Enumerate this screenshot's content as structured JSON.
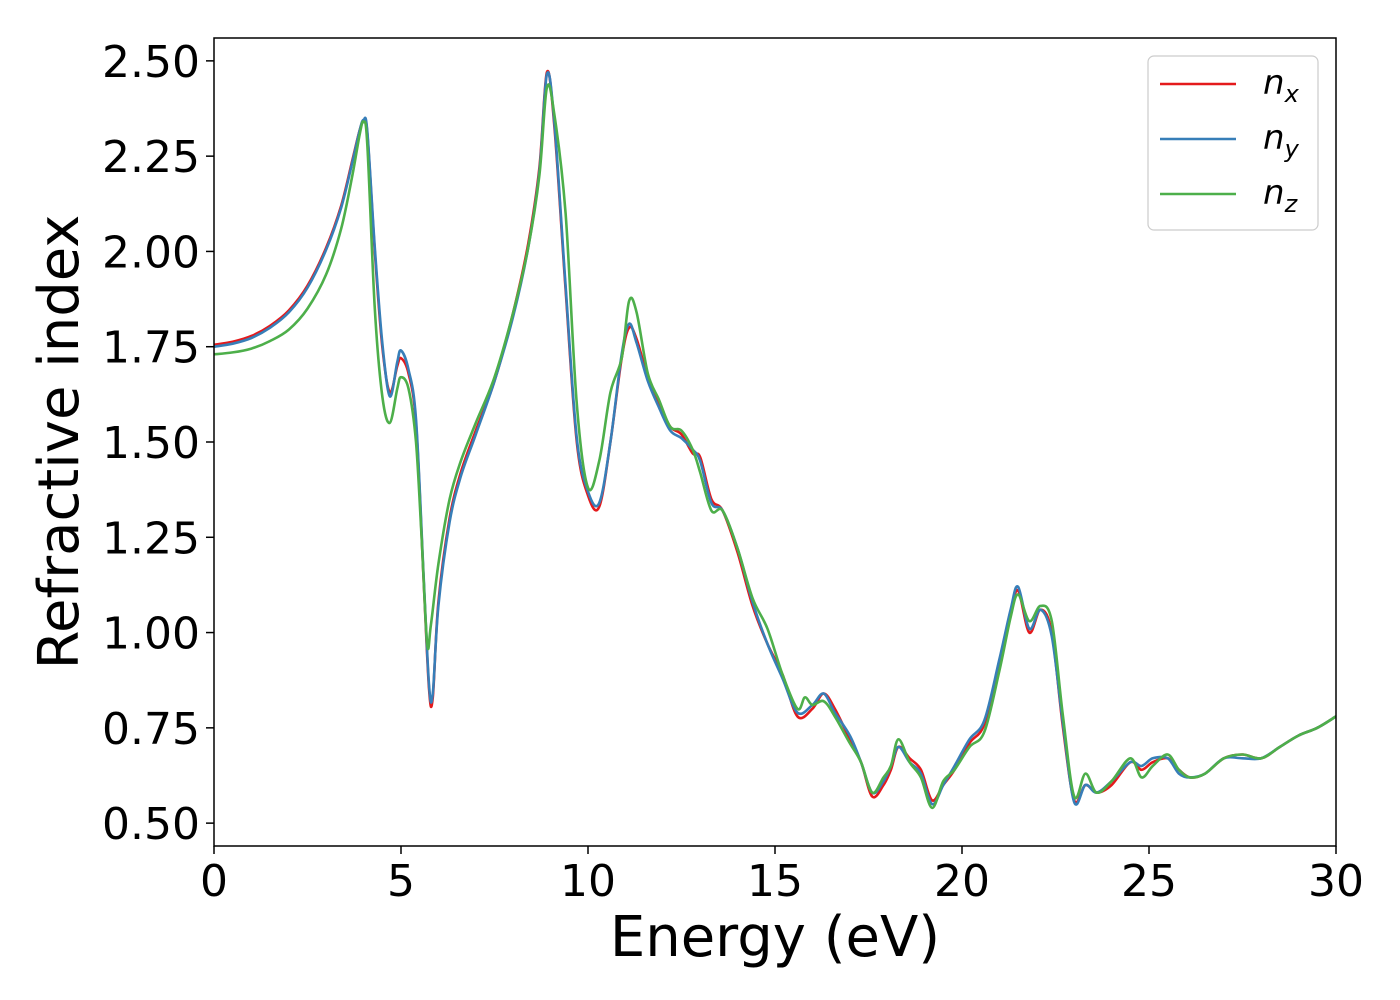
{
  "chart_data": {
    "type": "line",
    "xlabel": "Energy (eV)",
    "ylabel": "Refractive index",
    "xlim": [
      0,
      30
    ],
    "ylim": [
      0.44,
      2.56
    ],
    "xticks": [
      0,
      5,
      10,
      15,
      20,
      25,
      30
    ],
    "xtick_labels": [
      "0",
      "5",
      "10",
      "15",
      "20",
      "25",
      "30"
    ],
    "yticks": [
      0.5,
      0.75,
      1.0,
      1.25,
      1.5,
      1.75,
      2.0,
      2.25,
      2.5
    ],
    "ytick_labels": [
      "0.50",
      "0.75",
      "1.00",
      "1.25",
      "1.50",
      "1.75",
      "2.00",
      "2.25",
      "2.50"
    ],
    "grid": false,
    "legend_position": "top-right",
    "series": [
      {
        "name": "n_x",
        "label_base": "n",
        "label_sub": "x",
        "color": "#e41a1c",
        "x": [
          0,
          0.5,
          1,
          1.5,
          2,
          2.5,
          3,
          3.4,
          3.7,
          3.9,
          4.0,
          4.1,
          4.3,
          4.5,
          4.7,
          4.9,
          5.0,
          5.2,
          5.4,
          5.6,
          5.75,
          5.85,
          6.0,
          6.3,
          6.6,
          7.0,
          7.5,
          8.0,
          8.4,
          8.7,
          8.9,
          9.1,
          9.4,
          9.7,
          10.0,
          10.3,
          10.6,
          10.9,
          11.1,
          11.3,
          11.6,
          11.9,
          12.2,
          12.5,
          12.8,
          13.0,
          13.3,
          13.6,
          14.0,
          14.4,
          14.8,
          15.2,
          15.6,
          16.0,
          16.3,
          16.6,
          17.0,
          17.3,
          17.6,
          17.9,
          18.1,
          18.3,
          18.6,
          18.9,
          19.2,
          19.5,
          19.8,
          20.2,
          20.6,
          21.0,
          21.3,
          21.5,
          21.8,
          22.1,
          22.4,
          22.7,
          23.0,
          23.3,
          23.6,
          24.0,
          24.5,
          24.8,
          25.1,
          25.5,
          25.8,
          26.1,
          26.5,
          27.0,
          27.5,
          28.0,
          28.5,
          29.0,
          29.5,
          30.0
        ],
        "y": [
          1.755,
          1.763,
          1.778,
          1.805,
          1.845,
          1.91,
          2.01,
          2.12,
          2.24,
          2.32,
          2.34,
          2.31,
          2.0,
          1.75,
          1.63,
          1.7,
          1.72,
          1.68,
          1.55,
          1.15,
          0.85,
          0.83,
          1.08,
          1.3,
          1.42,
          1.53,
          1.66,
          1.84,
          2.02,
          2.22,
          2.47,
          2.33,
          1.9,
          1.5,
          1.36,
          1.33,
          1.5,
          1.72,
          1.8,
          1.77,
          1.67,
          1.6,
          1.54,
          1.52,
          1.47,
          1.46,
          1.35,
          1.32,
          1.21,
          1.07,
          0.97,
          0.89,
          0.78,
          0.8,
          0.84,
          0.8,
          0.72,
          0.66,
          0.57,
          0.6,
          0.64,
          0.7,
          0.67,
          0.64,
          0.56,
          0.6,
          0.64,
          0.71,
          0.76,
          0.92,
          1.05,
          1.11,
          1.0,
          1.06,
          1.0,
          0.75,
          0.56,
          0.6,
          0.58,
          0.6,
          0.66,
          0.64,
          0.66,
          0.67,
          0.64,
          0.62,
          0.63,
          0.67,
          0.68,
          0.67,
          0.7,
          0.73,
          0.75,
          0.78
        ]
      },
      {
        "name": "n_y",
        "label_base": "n",
        "label_sub": "y",
        "color": "#377eb8",
        "x": [
          0,
          0.5,
          1,
          1.5,
          2,
          2.5,
          3,
          3.4,
          3.7,
          3.9,
          4.0,
          4.1,
          4.3,
          4.5,
          4.7,
          4.9,
          5.0,
          5.2,
          5.4,
          5.6,
          5.75,
          5.85,
          6.0,
          6.3,
          6.6,
          7.0,
          7.5,
          8.0,
          8.4,
          8.7,
          8.9,
          9.1,
          9.4,
          9.7,
          10.0,
          10.3,
          10.6,
          10.9,
          11.1,
          11.3,
          11.6,
          11.9,
          12.2,
          12.5,
          12.8,
          13.0,
          13.3,
          13.6,
          14.0,
          14.4,
          14.8,
          15.2,
          15.6,
          16.0,
          16.3,
          16.6,
          17.0,
          17.3,
          17.6,
          17.9,
          18.1,
          18.3,
          18.6,
          18.9,
          19.2,
          19.5,
          19.8,
          20.2,
          20.6,
          21.0,
          21.3,
          21.5,
          21.8,
          22.1,
          22.4,
          22.7,
          23.0,
          23.3,
          23.6,
          24.0,
          24.5,
          24.8,
          25.1,
          25.5,
          25.8,
          26.1,
          26.5,
          27.0,
          27.5,
          28.0,
          28.5,
          29.0,
          29.5,
          30.0
        ],
        "y": [
          1.75,
          1.758,
          1.773,
          1.8,
          1.84,
          1.905,
          2.005,
          2.115,
          2.235,
          2.32,
          2.345,
          2.315,
          2.01,
          1.76,
          1.62,
          1.71,
          1.74,
          1.69,
          1.56,
          1.16,
          0.86,
          0.84,
          1.07,
          1.29,
          1.41,
          1.52,
          1.66,
          1.83,
          2.01,
          2.21,
          2.465,
          2.34,
          1.91,
          1.51,
          1.37,
          1.34,
          1.5,
          1.73,
          1.81,
          1.76,
          1.66,
          1.59,
          1.53,
          1.51,
          1.48,
          1.45,
          1.34,
          1.32,
          1.22,
          1.08,
          0.97,
          0.88,
          0.79,
          0.81,
          0.84,
          0.79,
          0.73,
          0.66,
          0.58,
          0.61,
          0.65,
          0.7,
          0.66,
          0.63,
          0.55,
          0.6,
          0.65,
          0.72,
          0.77,
          0.93,
          1.06,
          1.12,
          1.01,
          1.06,
          0.99,
          0.76,
          0.555,
          0.6,
          0.58,
          0.61,
          0.66,
          0.65,
          0.67,
          0.67,
          0.63,
          0.62,
          0.63,
          0.67,
          0.67,
          0.67,
          0.7,
          0.73,
          0.75,
          0.78
        ]
      },
      {
        "name": "n_z",
        "label_base": "n",
        "label_sub": "z",
        "color": "#4daf4a",
        "x": [
          0,
          0.5,
          1,
          1.5,
          2,
          2.5,
          3,
          3.4,
          3.7,
          3.9,
          4.0,
          4.1,
          4.3,
          4.5,
          4.7,
          4.9,
          5.0,
          5.2,
          5.4,
          5.55,
          5.7,
          5.8,
          6.0,
          6.3,
          6.6,
          7.0,
          7.5,
          8.0,
          8.4,
          8.7,
          8.9,
          9.1,
          9.4,
          9.7,
          10.0,
          10.3,
          10.6,
          10.9,
          11.1,
          11.3,
          11.6,
          11.9,
          12.2,
          12.5,
          12.8,
          13.0,
          13.3,
          13.6,
          14.0,
          14.4,
          14.8,
          15.2,
          15.6,
          15.8,
          16.0,
          16.3,
          16.6,
          17.0,
          17.3,
          17.6,
          17.9,
          18.1,
          18.3,
          18.6,
          18.9,
          19.2,
          19.5,
          19.8,
          20.2,
          20.6,
          21.0,
          21.3,
          21.5,
          21.8,
          22.1,
          22.4,
          22.7,
          23.0,
          23.3,
          23.6,
          24.0,
          24.5,
          24.8,
          25.1,
          25.5,
          25.8,
          26.1,
          26.5,
          27.0,
          27.5,
          28.0,
          28.5,
          29.0,
          29.5,
          30.0
        ],
        "y": [
          1.73,
          1.735,
          1.745,
          1.765,
          1.795,
          1.85,
          1.94,
          2.06,
          2.2,
          2.31,
          2.34,
          2.28,
          1.85,
          1.62,
          1.55,
          1.64,
          1.67,
          1.64,
          1.5,
          1.25,
          0.97,
          1.02,
          1.18,
          1.35,
          1.45,
          1.55,
          1.67,
          1.84,
          2.01,
          2.2,
          2.43,
          2.36,
          2.1,
          1.6,
          1.38,
          1.45,
          1.63,
          1.72,
          1.87,
          1.84,
          1.68,
          1.61,
          1.54,
          1.53,
          1.48,
          1.42,
          1.32,
          1.32,
          1.22,
          1.09,
          1.01,
          0.89,
          0.8,
          0.83,
          0.81,
          0.82,
          0.78,
          0.71,
          0.66,
          0.58,
          0.62,
          0.65,
          0.72,
          0.66,
          0.62,
          0.54,
          0.61,
          0.64,
          0.7,
          0.74,
          0.9,
          1.04,
          1.1,
          1.03,
          1.07,
          1.03,
          0.78,
          0.57,
          0.63,
          0.58,
          0.61,
          0.67,
          0.62,
          0.65,
          0.68,
          0.64,
          0.62,
          0.63,
          0.67,
          0.68,
          0.67,
          0.7,
          0.73,
          0.75,
          0.78
        ]
      }
    ]
  }
}
